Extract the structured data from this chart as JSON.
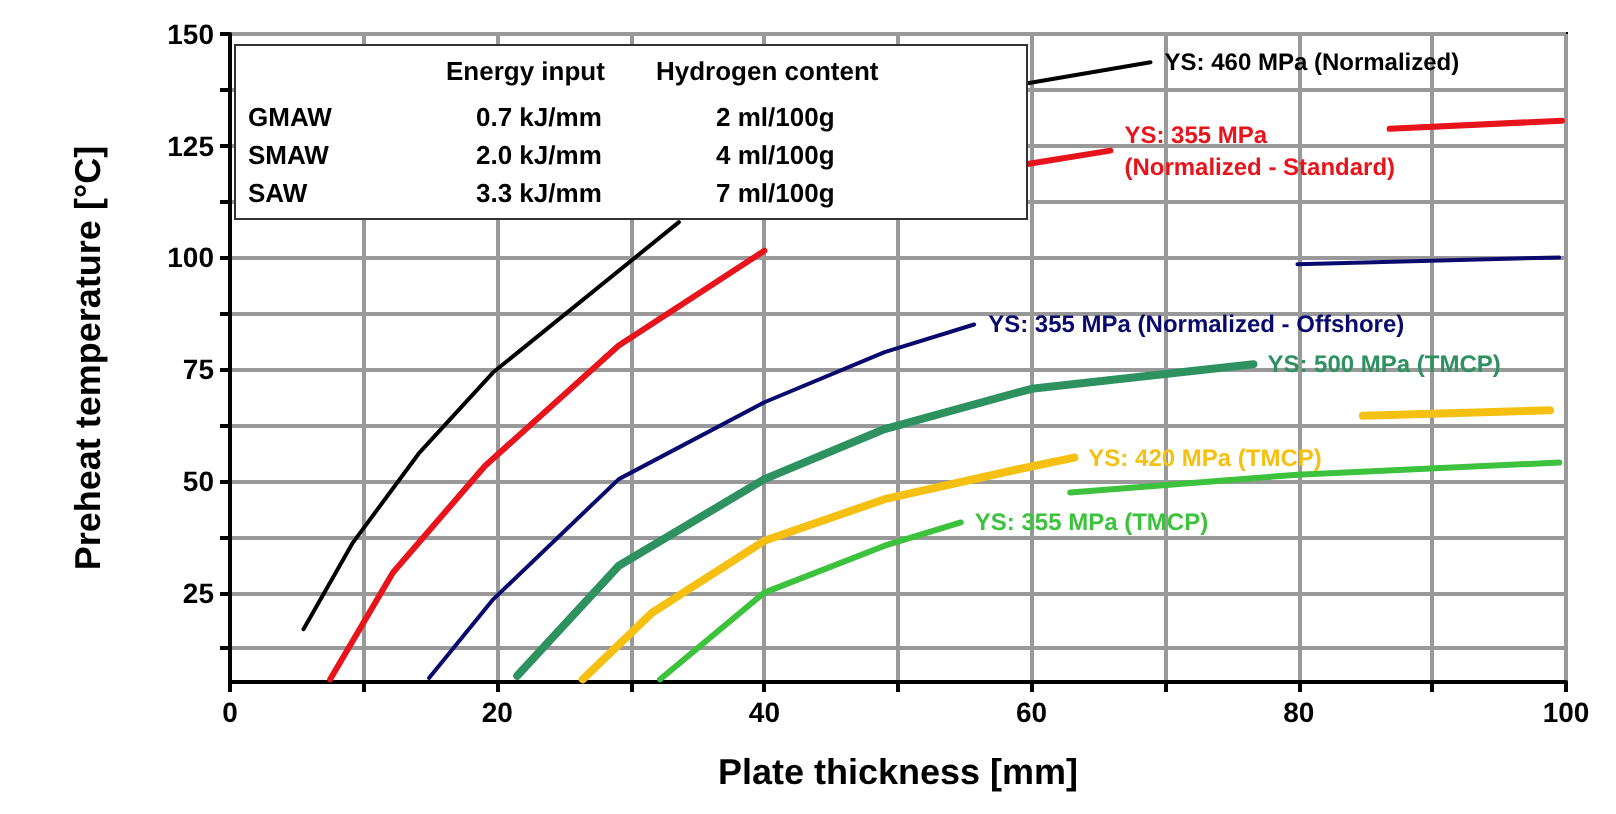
{
  "chart_data": {
    "type": "line",
    "xlabel": "Plate thickness [mm]",
    "ylabel": "Preheat temperature [°C]",
    "xlim": [
      0,
      100
    ],
    "xticks": [
      0,
      {
        "value": 10,
        "label": null
      },
      20,
      {
        "value": 30,
        "label": null
      },
      40,
      {
        "value": 50,
        "label": null
      },
      60,
      {
        "value": 70,
        "label": null
      },
      80,
      {
        "value": 90,
        "label": null
      },
      100
    ],
    "ylim": [
      5,
      150
    ],
    "yticks": [
      {
        "value": 12.5,
        "label": null
      },
      25,
      {
        "value": 37.5,
        "label": null
      },
      50,
      {
        "value": 62.5,
        "label": null
      },
      75,
      {
        "value": 87.5,
        "label": null
      },
      100,
      {
        "value": 112.5,
        "label": null
      },
      125,
      {
        "value": 137.5,
        "label": null
      },
      150
    ],
    "grid": true,
    "legend": false,
    "marker": "none",
    "line_style": "solid",
    "annotations": [
      "Energy input",
      "Hydrogen content",
      "GMAW",
      "0.7 kJ/mm",
      "2 ml/100g",
      "SMAW",
      "2.0 kJ/mm",
      "4 ml/100g",
      "SAW",
      "3.3 kJ/mm",
      "7 ml/100g"
    ],
    "series": [
      {
        "name": "YS: 460 MPa (Normalized)",
        "color": "#000000",
        "x": [
          5.5,
          9.2,
          14.2,
          19.7,
          33.6,
          45,
          59.7,
          68.9
        ],
        "values": [
          16.8,
          36.2,
          56.4,
          74.3,
          107.9,
          null,
          139,
          143.7
        ]
      },
      {
        "name": "YS: 355 MPa (Normalized - Standard)",
        "color": "#e8141b",
        "x": [
          7.5,
          12.2,
          19.1,
          29.1,
          40,
          52,
          59.7,
          65.9,
          76,
          86.8,
          99.7
        ],
        "values": [
          5.6,
          29.5,
          53.4,
          80.3,
          101.5,
          null,
          120.9,
          123.9,
          null,
          128.8,
          130.6
        ]
      },
      {
        "name": "YS: 355 MPa (Normalized - Offshore)",
        "color": "#0a0a6e",
        "x": [
          14.9,
          19.7,
          29.1,
          40,
          49,
          55.7,
          68,
          79.9,
          99.5
        ],
        "values": [
          5.9,
          23.5,
          50.4,
          67.6,
          78.8,
          85,
          null,
          98.5,
          100
        ]
      },
      {
        "name": "YS: 500 MPa (TMCP)",
        "color": "#2e9160",
        "x": [
          21.5,
          29.1,
          40,
          49,
          59,
          60,
          76.6
        ],
        "values": [
          6.4,
          31,
          50.4,
          61.6,
          69.8,
          70.6,
          76.1
        ]
      },
      {
        "name": "YS: 420 MPa (TMCP)",
        "color": "#f5c012",
        "x": [
          26.4,
          31.6,
          40,
          49,
          59,
          63.2,
          74,
          84.8,
          98.8
        ],
        "values": [
          5.6,
          20.5,
          36.6,
          45.9,
          52.6,
          55.2,
          null,
          64.6,
          65.8
        ]
      },
      {
        "name": "YS: 355 MPa (TMCP)",
        "color": "#3cc23c",
        "x": [
          32.2,
          40,
          49,
          54.7,
          58,
          62.9,
          79.9,
          99.5
        ],
        "values": [
          5.6,
          25,
          35.5,
          40.7,
          null,
          47.4,
          51.4,
          54.1
        ]
      }
    ]
  }
}
